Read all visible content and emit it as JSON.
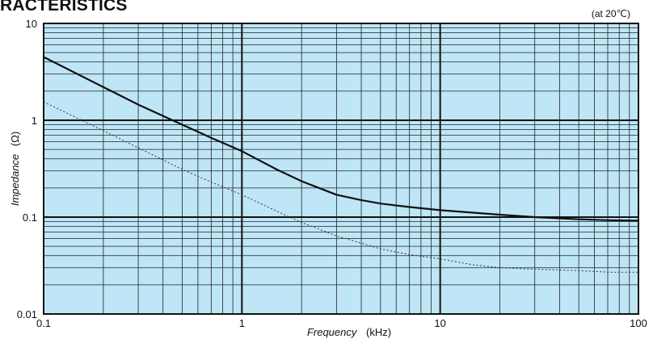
{
  "title": "RACTERISTICS",
  "condition": "(at 20℃)",
  "colors": {
    "plot_background": "#bfe6f6",
    "grid_major": "#111111",
    "grid_minor": "#222222",
    "solid_curve": "#111111",
    "dotted_curve": "#333333"
  },
  "chart_data": {
    "type": "line",
    "title": "RACTERISTICS",
    "annotation": "(at 20℃)",
    "xlabel": "Frequency",
    "xlabel_unit": "(kHz)",
    "ylabel": "Impedance",
    "ylabel_unit": "(Ω)",
    "x_scale": "log",
    "y_scale": "log",
    "xlim": [
      0.1,
      100
    ],
    "ylim": [
      0.01,
      10
    ],
    "x_ticks": [
      "0.1",
      "1",
      "10",
      "100"
    ],
    "y_ticks": [
      "0.01",
      "0.1",
      "1",
      "10"
    ],
    "grid": true,
    "series": [
      {
        "style": "solid",
        "x": [
          0.1,
          0.2,
          0.3,
          0.5,
          0.7,
          1,
          1.5,
          2,
          3,
          4,
          5,
          7,
          10,
          20,
          30,
          50,
          70,
          100
        ],
        "y": [
          4.5,
          2.2,
          1.45,
          0.9,
          0.66,
          0.48,
          0.31,
          0.235,
          0.17,
          0.15,
          0.138,
          0.127,
          0.118,
          0.106,
          0.1,
          0.095,
          0.093,
          0.092
        ]
      },
      {
        "style": "dotted",
        "x": [
          0.1,
          0.2,
          0.3,
          0.5,
          0.7,
          1,
          1.5,
          2,
          3,
          5,
          7,
          10,
          15,
          20,
          30,
          50,
          70,
          100
        ],
        "y": [
          1.55,
          0.78,
          0.52,
          0.31,
          0.23,
          0.17,
          0.115,
          0.088,
          0.064,
          0.047,
          0.041,
          0.037,
          0.032,
          0.03,
          0.029,
          0.028,
          0.027,
          0.027
        ]
      }
    ]
  }
}
